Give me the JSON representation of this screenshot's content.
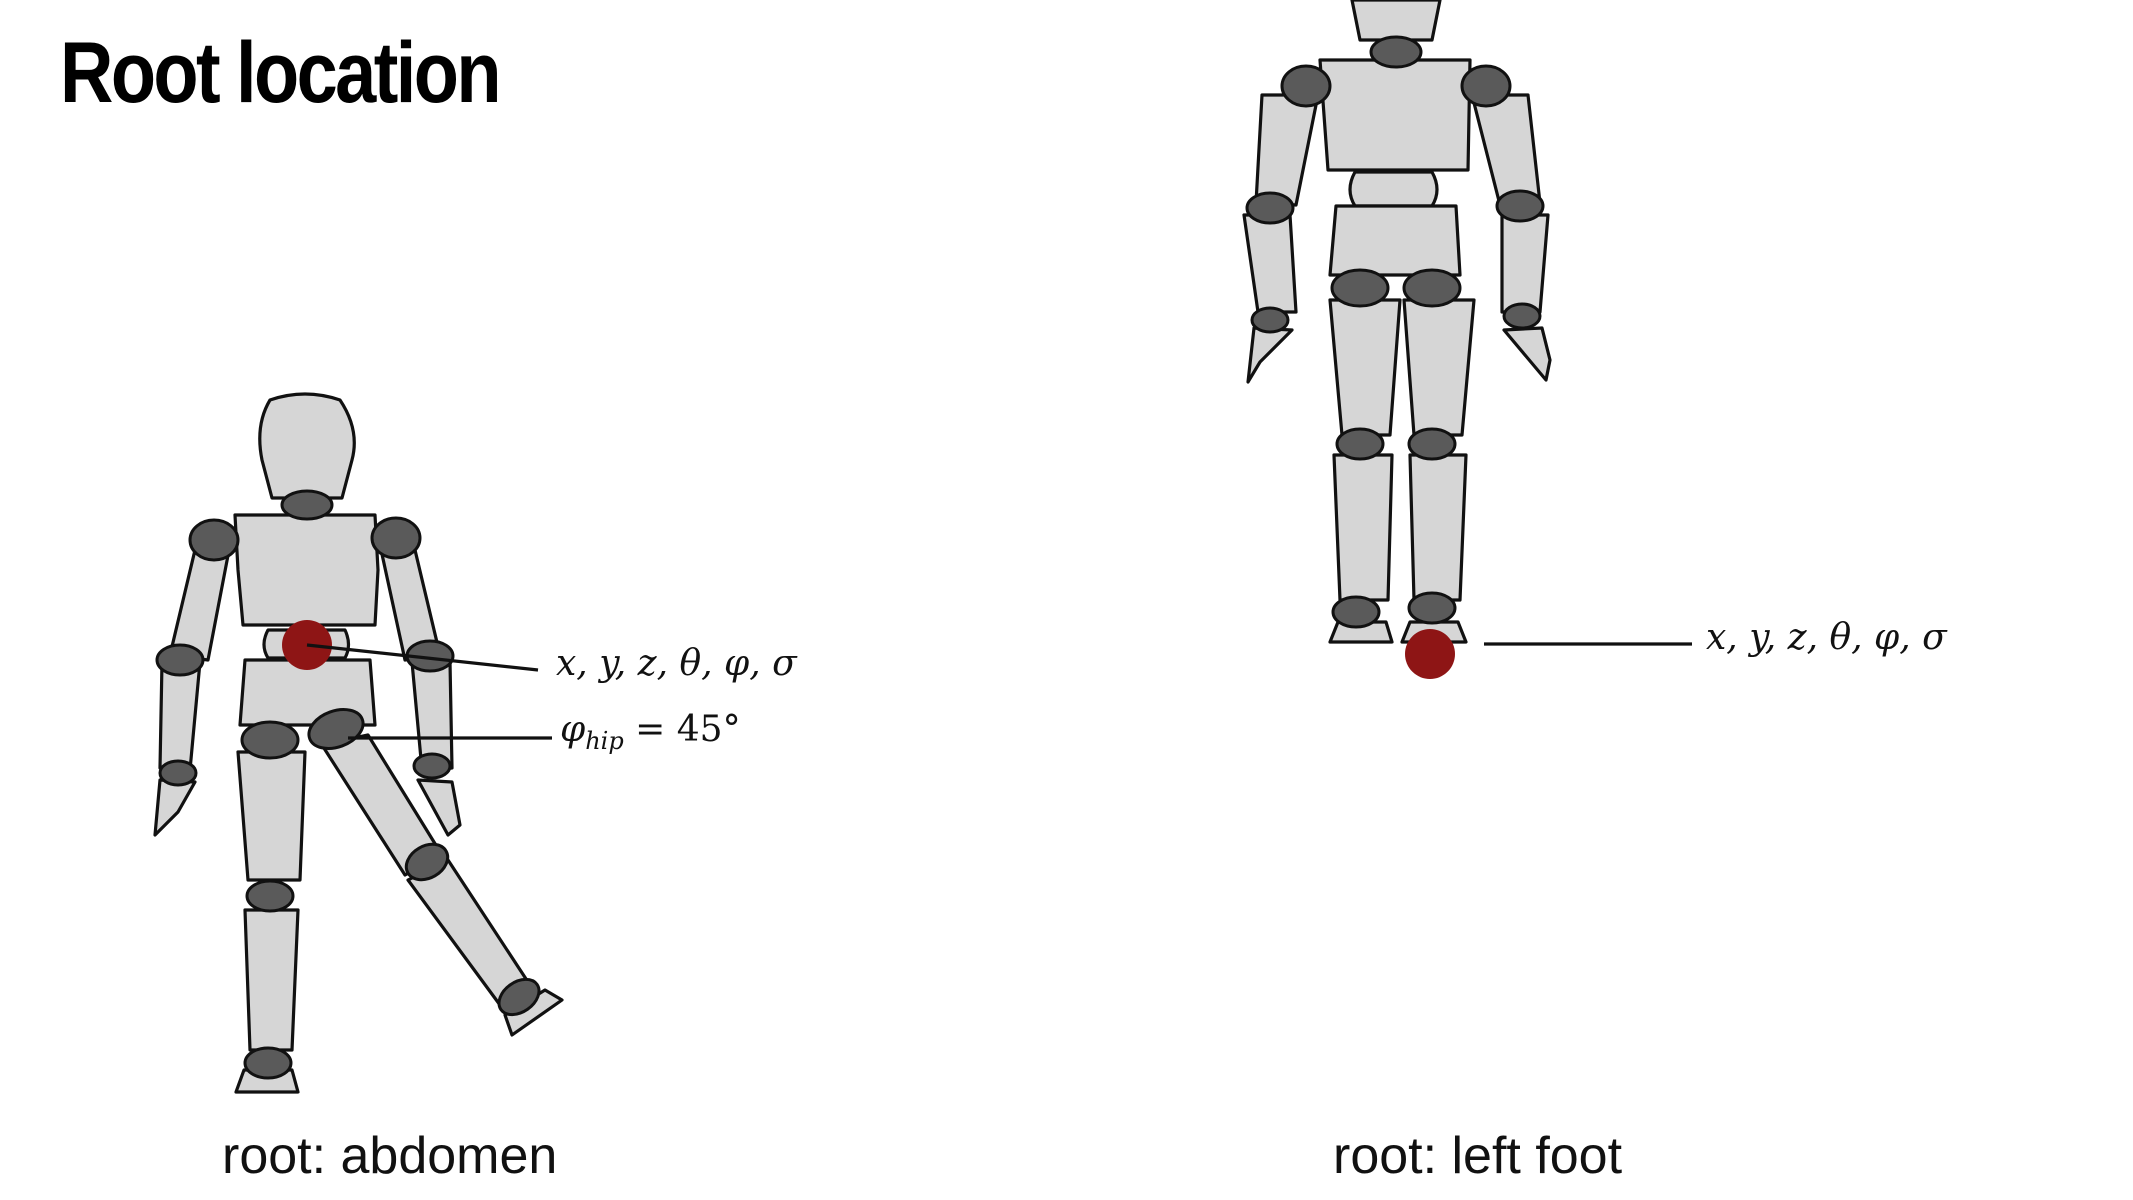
{
  "slide": {
    "title": "Root location"
  },
  "left_figure": {
    "caption": "root: abdomen",
    "root_label": "x, y, z, θ, φ, σ",
    "hip_label_symbol": "φ",
    "hip_label_subscript": "hip",
    "hip_label_value": " = 45°"
  },
  "right_figure": {
    "caption": "root: left foot",
    "root_label": "x, y, z, θ, φ, σ"
  },
  "colors": {
    "root_marker": "#8e1515",
    "body": "#d6d6d6",
    "joint": "#5a5a5a"
  }
}
